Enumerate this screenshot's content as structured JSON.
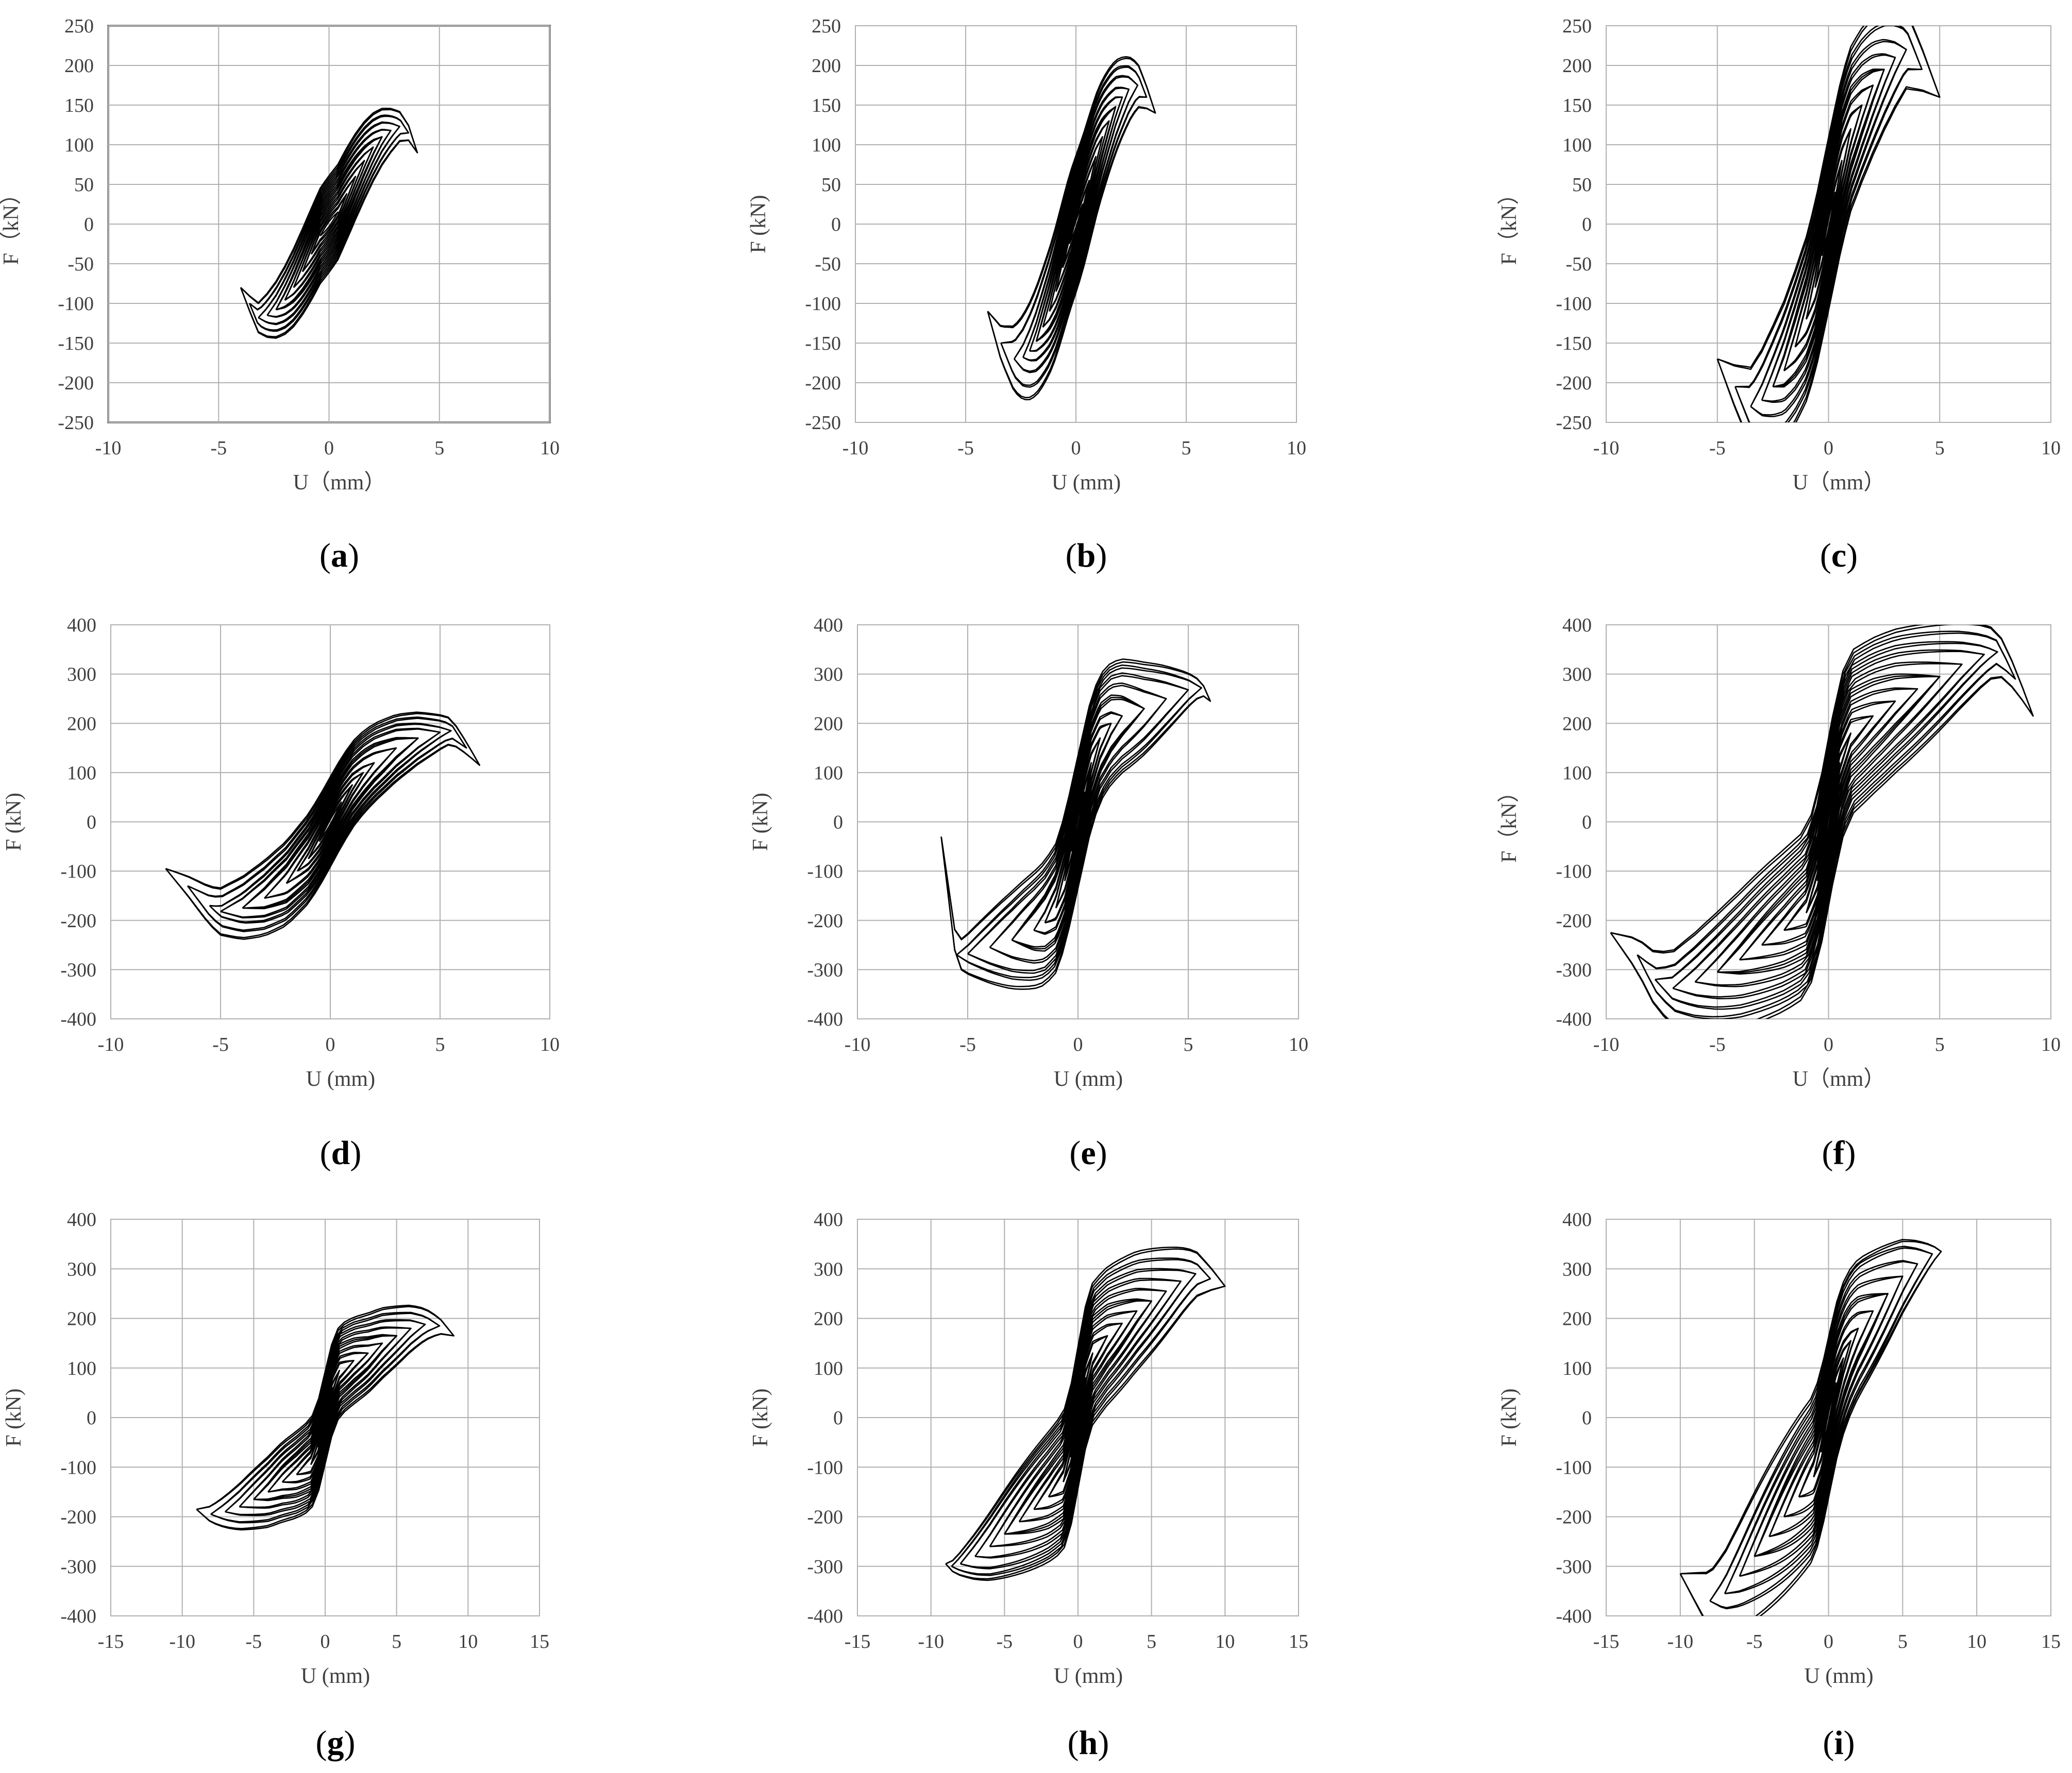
{
  "figure": {
    "panels": [
      {
        "letter": "a",
        "xlabel": "U（mm）",
        "ylabel": "F（kN）"
      },
      {
        "letter": "b",
        "xlabel": "U (mm)",
        "ylabel": "F (kN)"
      },
      {
        "letter": "c",
        "xlabel": "U（mm）",
        "ylabel": "F（kN）"
      },
      {
        "letter": "d",
        "xlabel": "U (mm)",
        "ylabel": "F (kN)"
      },
      {
        "letter": "e",
        "xlabel": "U (mm)",
        "ylabel": "F (kN)"
      },
      {
        "letter": "f",
        "xlabel": "U（mm）",
        "ylabel": "F（kN）"
      },
      {
        "letter": "g",
        "xlabel": "U (mm)",
        "ylabel": "F (kN)"
      },
      {
        "letter": "h",
        "xlabel": "U (mm)",
        "ylabel": "F (kN)"
      },
      {
        "letter": "i",
        "xlabel": "U (mm)",
        "ylabel": "F (kN)"
      }
    ],
    "colors": {
      "grid": "#b0b0b0",
      "curve": "#000000",
      "text": "#404040",
      "frame_a": "#000000"
    }
  },
  "chart_data": [
    {
      "type": "line",
      "letter": "a",
      "xlabel": "U（mm）",
      "ylabel": "F（kN）",
      "xlim": [
        -10,
        10
      ],
      "ylim": [
        -250,
        250
      ],
      "xticks": [
        -10,
        -5,
        0,
        5,
        10
      ],
      "yticks": [
        250,
        200,
        150,
        100,
        50,
        0,
        -50,
        -100,
        -150,
        -200,
        -250
      ],
      "grid": true,
      "legend": "none",
      "envelope": {
        "u_pos": [
          0.4,
          0.8,
          1.2,
          1.6,
          2.0,
          2.4,
          2.8,
          3.2,
          3.6,
          4.0
        ],
        "f_pos": [
          15,
          38,
          60,
          80,
          97,
          110,
          118,
          123,
          115,
          90
        ],
        "u_neg": [
          -0.4,
          -0.8,
          -1.2,
          -1.6,
          -2.0,
          -2.4,
          -2.8,
          -3.2,
          -3.6,
          -4.0
        ],
        "f_neg": [
          -15,
          -38,
          -60,
          -80,
          -96,
          -108,
          -115,
          -118,
          -100,
          -80
        ]
      }
    },
    {
      "type": "line",
      "letter": "b",
      "xlabel": "U (mm)",
      "ylabel": "F (kN)",
      "xlim": [
        -10,
        10
      ],
      "ylim": [
        -250,
        250
      ],
      "xticks": [
        -10,
        -5,
        0,
        5,
        10
      ],
      "yticks": [
        250,
        200,
        150,
        100,
        50,
        0,
        -50,
        -100,
        -150,
        -200,
        -250
      ],
      "grid": true,
      "legend": "none",
      "envelope": {
        "u_pos": [
          0.3,
          0.6,
          0.9,
          1.2,
          1.5,
          1.8,
          2.1,
          2.4,
          2.8,
          3.2,
          3.6
        ],
        "f_pos": [
          25,
          55,
          85,
          110,
          130,
          148,
          160,
          170,
          175,
          160,
          140
        ],
        "u_neg": [
          -0.3,
          -0.6,
          -0.9,
          -1.2,
          -1.5,
          -1.8,
          -2.1,
          -2.4,
          -2.8,
          -3.4,
          -4.0
        ],
        "f_neg": [
          -25,
          -55,
          -85,
          -110,
          -130,
          -148,
          -160,
          -168,
          -170,
          -150,
          -110
        ]
      }
    },
    {
      "type": "line",
      "letter": "c",
      "xlabel": "U（mm）",
      "ylabel": "F（kN）",
      "xlim": [
        -10,
        10
      ],
      "ylim": [
        -250,
        250
      ],
      "xticks": [
        -10,
        -5,
        0,
        5,
        10
      ],
      "yticks": [
        250,
        200,
        150,
        100,
        50,
        0,
        -50,
        -100,
        -150,
        -200,
        -250
      ],
      "grid": true,
      "legend": "none",
      "envelope": {
        "u_pos": [
          0.3,
          0.6,
          1.0,
          1.5,
          2.0,
          2.5,
          3.0,
          3.5,
          4.2,
          5.0
        ],
        "f_pos": [
          40,
          80,
          120,
          150,
          175,
          195,
          210,
          220,
          195,
          160
        ],
        "u_neg": [
          -0.3,
          -0.6,
          -1.0,
          -1.5,
          -2.0,
          -2.5,
          -3.0,
          -3.5,
          -4.2,
          -5.0
        ],
        "f_neg": [
          -40,
          -80,
          -120,
          -155,
          -185,
          -205,
          -222,
          -230,
          -205,
          -170
        ]
      }
    },
    {
      "type": "line",
      "letter": "d",
      "xlabel": "U (mm)",
      "ylabel": "F (kN)",
      "xlim": [
        -10,
        10
      ],
      "ylim": [
        -400,
        400
      ],
      "xticks": [
        -10,
        -5,
        0,
        5,
        10
      ],
      "yticks": [
        400,
        300,
        200,
        100,
        0,
        -100,
        -200,
        -300,
        -400
      ],
      "grid": true,
      "legend": "none",
      "envelope": {
        "u_pos": [
          0.5,
          1.0,
          1.5,
          2.0,
          3.0,
          4.0,
          5.0,
          5.5,
          6.2,
          6.8
        ],
        "f_pos": [
          40,
          75,
          100,
          120,
          150,
          170,
          182,
          185,
          150,
          115
        ],
        "u_neg": [
          -0.5,
          -1.0,
          -1.5,
          -2.0,
          -3.0,
          -4.0,
          -5.0,
          -5.5,
          -6.5,
          -7.5
        ],
        "f_neg": [
          -40,
          -75,
          -100,
          -125,
          -155,
          -175,
          -182,
          -170,
          -130,
          -95
        ]
      }
    },
    {
      "type": "line",
      "letter": "e",
      "xlabel": "U (mm)",
      "ylabel": "F (kN)",
      "xlim": [
        -10,
        10
      ],
      "ylim": [
        -400,
        400
      ],
      "xticks": [
        -10,
        -5,
        0,
        5,
        10
      ],
      "yticks": [
        400,
        300,
        200,
        100,
        0,
        -100,
        -200,
        -300,
        -400
      ],
      "grid": true,
      "legend": "none",
      "envelope": {
        "u_pos": [
          0.3,
          0.6,
          1.0,
          1.5,
          2.0,
          3.0,
          4.0,
          5.0,
          5.6,
          6.0
        ],
        "f_pos": [
          60,
          120,
          170,
          200,
          215,
          230,
          250,
          268,
          272,
          245
        ],
        "u_neg": [
          -0.3,
          -0.6,
          -1.0,
          -1.5,
          -2.0,
          -3.0,
          -4.0,
          -5.0,
          -5.5,
          -6.2
        ],
        "f_neg": [
          -60,
          -120,
          -175,
          -205,
          -220,
          -240,
          -255,
          -268,
          -270,
          -30
        ]
      }
    },
    {
      "type": "line",
      "letter": "f",
      "xlabel": "U（mm）",
      "ylabel": "F（kN）",
      "xlim": [
        -10,
        10
      ],
      "ylim": [
        -400,
        400
      ],
      "xticks": [
        -10,
        -5,
        0,
        5,
        10
      ],
      "yticks": [
        400,
        300,
        200,
        100,
        0,
        -100,
        -200,
        -300,
        -400
      ],
      "grid": true,
      "legend": "none",
      "envelope": {
        "u_pos": [
          0.5,
          1.0,
          2.0,
          3.0,
          4.0,
          5.0,
          6.0,
          7.0,
          7.6,
          8.4,
          9.2
        ],
        "f_pos": [
          120,
          180,
          215,
          245,
          270,
          295,
          320,
          340,
          345,
          290,
          215
        ],
        "u_neg": [
          -0.5,
          -1.0,
          -2.0,
          -3.0,
          -4.0,
          -5.0,
          -6.0,
          -7.0,
          -7.8,
          -8.6,
          -9.8
        ],
        "f_neg": [
          -120,
          -185,
          -220,
          -250,
          -280,
          -305,
          -325,
          -338,
          -320,
          -270,
          -225
        ]
      }
    },
    {
      "type": "line",
      "letter": "g",
      "xlabel": "U (mm)",
      "ylabel": "F (kN)",
      "xlim": [
        -15,
        15
      ],
      "ylim": [
        -400,
        400
      ],
      "xticks": [
        -15,
        -10,
        -5,
        0,
        5,
        10,
        15
      ],
      "yticks": [
        400,
        300,
        200,
        100,
        0,
        -100,
        -200,
        -300,
        -400
      ],
      "grid": true,
      "legend": "none",
      "envelope": {
        "u_pos": [
          0.5,
          1.0,
          2.0,
          3.0,
          4.0,
          5.0,
          6.0,
          7.0,
          8.0,
          9.0
        ],
        "f_pos": [
          60,
          95,
          115,
          130,
          150,
          165,
          180,
          188,
          185,
          165
        ],
        "u_neg": [
          -0.5,
          -1.0,
          -2.0,
          -3.0,
          -4.0,
          -5.0,
          -6.0,
          -7.0,
          -8.0,
          -9.0
        ],
        "f_neg": [
          -60,
          -95,
          -115,
          -130,
          -150,
          -165,
          -180,
          -190,
          -195,
          -185
        ]
      }
    },
    {
      "type": "line",
      "letter": "h",
      "xlabel": "U (mm)",
      "ylabel": "F (kN)",
      "xlim": [
        -15,
        15
      ],
      "ylim": [
        -400,
        400
      ],
      "xticks": [
        -15,
        -10,
        -5,
        0,
        5,
        10,
        15
      ],
      "yticks": [
        400,
        300,
        200,
        100,
        0,
        -100,
        -200,
        -300,
        -400
      ],
      "grid": true,
      "legend": "none",
      "envelope": {
        "u_pos": [
          0.5,
          1.0,
          2.0,
          3.0,
          4.0,
          5.0,
          6.0,
          7.0,
          8.0,
          9.0,
          10.0
        ],
        "f_pos": [
          80,
          130,
          165,
          190,
          215,
          235,
          255,
          275,
          290,
          280,
          265
        ],
        "u_neg": [
          -0.5,
          -1.0,
          -2.0,
          -3.0,
          -4.0,
          -5.0,
          -6.0,
          -7.0,
          -8.0,
          -8.6,
          -9.0
        ],
        "f_neg": [
          -80,
          -130,
          -160,
          -185,
          -210,
          -235,
          -260,
          -280,
          -295,
          -300,
          -295
        ]
      }
    },
    {
      "type": "line",
      "letter": "i",
      "xlabel": "U (mm)",
      "ylabel": "F (kN)",
      "xlim": [
        -15,
        15
      ],
      "ylim": [
        -400,
        400
      ],
      "xticks": [
        -15,
        -10,
        -5,
        0,
        5,
        10,
        15
      ],
      "yticks": [
        400,
        300,
        200,
        100,
        0,
        -100,
        -200,
        -300,
        -400
      ],
      "grid": true,
      "legend": "none",
      "envelope": {
        "u_pos": [
          0.5,
          1.0,
          1.5,
          2.0,
          3.0,
          4.0,
          5.0,
          6.0,
          7.0,
          7.6
        ],
        "f_pos": [
          70,
          120,
          155,
          180,
          215,
          250,
          285,
          310,
          330,
          335
        ],
        "u_neg": [
          -0.5,
          -1.0,
          -2.0,
          -3.0,
          -4.0,
          -5.0,
          -6.0,
          -7.0,
          -8.0,
          -10.0
        ],
        "f_neg": [
          -70,
          -120,
          -160,
          -200,
          -240,
          -280,
          -320,
          -355,
          -370,
          -315
        ]
      }
    }
  ]
}
